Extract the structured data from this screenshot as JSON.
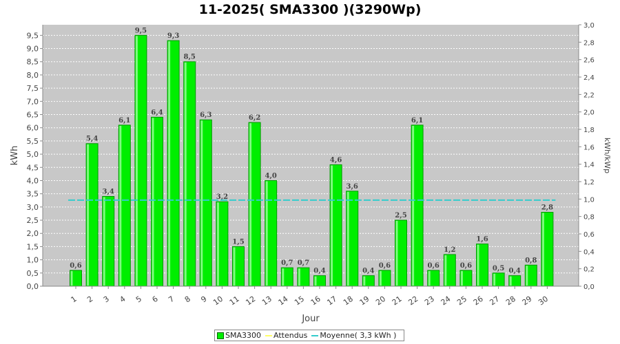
{
  "chart_data": {
    "type": "bar",
    "title": "11-2025( SMA3300 )(3290Wp)",
    "xlabel": "Jour",
    "ylabel": "kWh",
    "y2label": "kWh/kWp",
    "categories": [
      "1",
      "2",
      "3",
      "4",
      "5",
      "6",
      "7",
      "8",
      "9",
      "10",
      "11",
      "12",
      "13",
      "14",
      "15",
      "16",
      "17",
      "18",
      "19",
      "20",
      "21",
      "22",
      "23",
      "24",
      "25",
      "26",
      "27",
      "28",
      "29",
      "30"
    ],
    "series": [
      {
        "name": "SMA3300",
        "values": [
          0.6,
          5.4,
          3.4,
          6.1,
          9.5,
          6.4,
          9.3,
          8.5,
          6.3,
          3.2,
          1.5,
          6.2,
          4.0,
          0.7,
          0.7,
          0.4,
          4.6,
          3.6,
          0.4,
          0.6,
          2.5,
          6.1,
          0.6,
          1.2,
          0.6,
          1.6,
          0.5,
          0.4,
          0.8,
          2.8
        ],
        "color": "#00ee00"
      }
    ],
    "data_labels": [
      "0,6",
      "5,4",
      "3,4",
      "6,1",
      "9,5",
      "6,4",
      "9,3",
      "8,5",
      "6,3",
      "3,2",
      "1,5",
      "6,2",
      "4,0",
      "0,7",
      "0,7",
      "0,4",
      "4,6",
      "3,6",
      "0,4",
      "0,6",
      "2,5",
      "6,1",
      "0,6",
      "1,2",
      "0,6",
      "1,6",
      "0,5",
      "0,4",
      "0,8",
      "2,8"
    ],
    "reference_lines": [
      {
        "name": "Attendus",
        "color": "#ffff66"
      },
      {
        "name": "Moyenne( 3,3 kWh )",
        "value": 3.26,
        "color": "#33cccc"
      }
    ],
    "ylim": [
      0,
      9.9
    ],
    "yticks": [
      "0,0",
      "0,5",
      "1,0",
      "1,5",
      "2,0",
      "2,5",
      "3,0",
      "3,5",
      "4,0",
      "4,5",
      "5,0",
      "5,5",
      "6,0",
      "6,5",
      "7,0",
      "7,5",
      "8,0",
      "8,5",
      "9,0",
      "9,5"
    ],
    "y2lim": [
      0,
      3.0
    ],
    "y2ticks": [
      "0,0",
      "0,2",
      "0,4",
      "0,6",
      "0,8",
      "1,0",
      "1,2",
      "1,4",
      "1,6",
      "1,8",
      "2,0",
      "2,2",
      "2,4",
      "2,6",
      "2,8",
      "3,0"
    ],
    "grid": true,
    "legend_position": "bottom"
  },
  "legend": {
    "items": [
      "SMA3300",
      "Attendus",
      "Moyenne( 3,3 kWh )"
    ]
  },
  "colors": {
    "plot_background": "#c8c8c8",
    "bar": "#00ee00",
    "bar_edge": "#009900",
    "average_line": "#33cccc",
    "expected_line": "#ffff66"
  }
}
